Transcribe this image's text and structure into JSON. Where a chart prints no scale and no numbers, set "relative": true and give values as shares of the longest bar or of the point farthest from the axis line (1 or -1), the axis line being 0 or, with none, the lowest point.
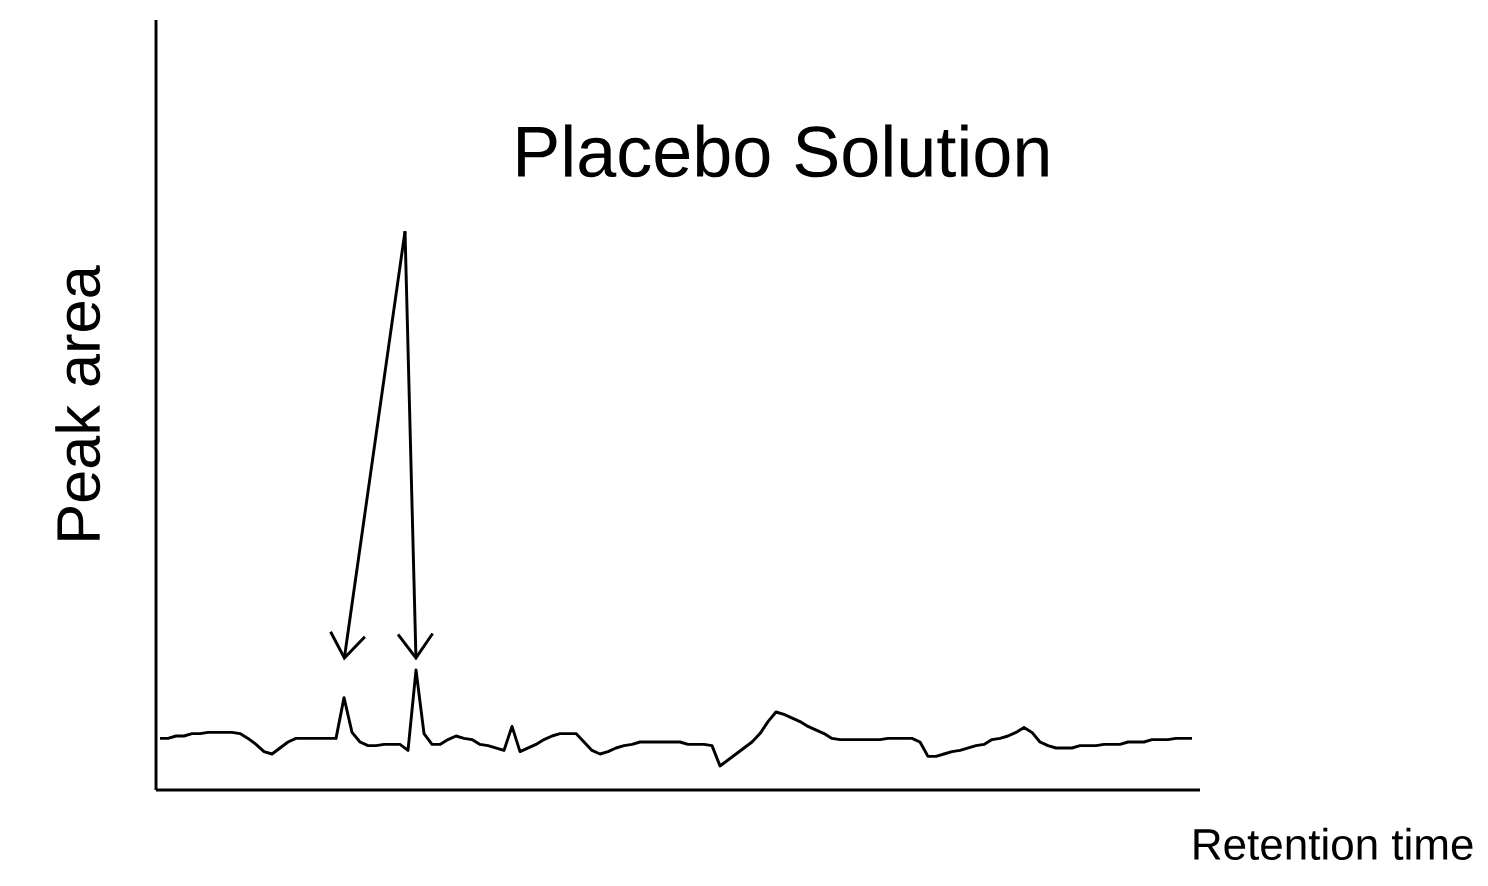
{
  "chart_data": {
    "type": "line",
    "relative": true,
    "xlabel": "Retention time",
    "ylabel": "Peak area",
    "annotations": [
      "Placebo Solution"
    ],
    "color": "#000000",
    "categories": [
      null,
      null,
      null,
      null,
      null,
      null,
      null,
      null,
      null,
      null,
      null,
      null,
      null,
      null,
      null,
      null,
      null,
      null,
      null,
      null,
      null,
      null,
      null,
      null,
      null,
      null,
      null,
      null,
      null,
      null,
      null,
      null,
      null,
      null,
      null,
      null,
      null,
      null,
      null,
      null,
      null,
      null,
      null,
      null,
      null,
      null,
      null,
      null,
      null,
      null,
      null,
      null,
      null,
      null,
      null,
      null,
      null,
      null,
      null,
      null,
      null,
      null,
      null,
      null,
      null,
      null,
      null,
      null,
      null,
      null,
      null,
      null,
      null,
      null,
      null,
      null,
      null,
      null,
      null,
      null,
      null,
      null,
      null,
      null,
      null,
      null,
      null,
      null,
      null,
      null,
      null,
      null,
      null,
      null,
      null,
      null,
      null,
      null,
      null,
      null,
      null,
      null,
      null,
      null,
      null,
      null,
      null,
      null,
      null,
      null,
      null,
      null,
      null,
      null,
      null,
      null,
      null,
      null,
      null,
      null,
      null,
      null,
      null,
      null,
      null,
      null,
      null,
      null,
      null,
      null
    ],
    "values": [
      0.43,
      0.43,
      0.45,
      0.45,
      0.47,
      0.47,
      0.48,
      0.48,
      0.48,
      0.48,
      0.47,
      0.43,
      0.38,
      0.32,
      0.3,
      0.35,
      0.4,
      0.43,
      0.43,
      0.43,
      0.43,
      0.43,
      0.43,
      0.77,
      0.48,
      0.4,
      0.37,
      0.37,
      0.38,
      0.38,
      0.38,
      0.33,
      1,
      0.47,
      0.38,
      0.38,
      0.42,
      0.45,
      0.43,
      0.42,
      0.38,
      0.37,
      0.35,
      0.33,
      0.53,
      0.32,
      0.35,
      0.38,
      0.42,
      0.45,
      0.47,
      0.47,
      0.47,
      0.4,
      0.33,
      0.3,
      0.32,
      0.35,
      0.37,
      0.38,
      0.4,
      0.4,
      0.4,
      0.4,
      0.4,
      0.4,
      0.38,
      0.38,
      0.38,
      0.37,
      0.2,
      0.25,
      0.3,
      0.35,
      0.4,
      0.47,
      0.57,
      0.65,
      0.63,
      0.6,
      0.57,
      0.53,
      0.5,
      0.47,
      0.43,
      0.42,
      0.42,
      0.42,
      0.42,
      0.42,
      0.42,
      0.43,
      0.43,
      0.43,
      0.43,
      0.4,
      0.28,
      0.28,
      0.3,
      0.32,
      0.33,
      0.35,
      0.37,
      0.38,
      0.42,
      0.43,
      0.45,
      0.48,
      0.52,
      0.48,
      0.4,
      0.37,
      0.35,
      0.35,
      0.35,
      0.37,
      0.37,
      0.37,
      0.38,
      0.38,
      0.38,
      0.4,
      0.4,
      0.4,
      0.42,
      0.42,
      0.42,
      0.43,
      0.43,
      0.43
    ]
  }
}
